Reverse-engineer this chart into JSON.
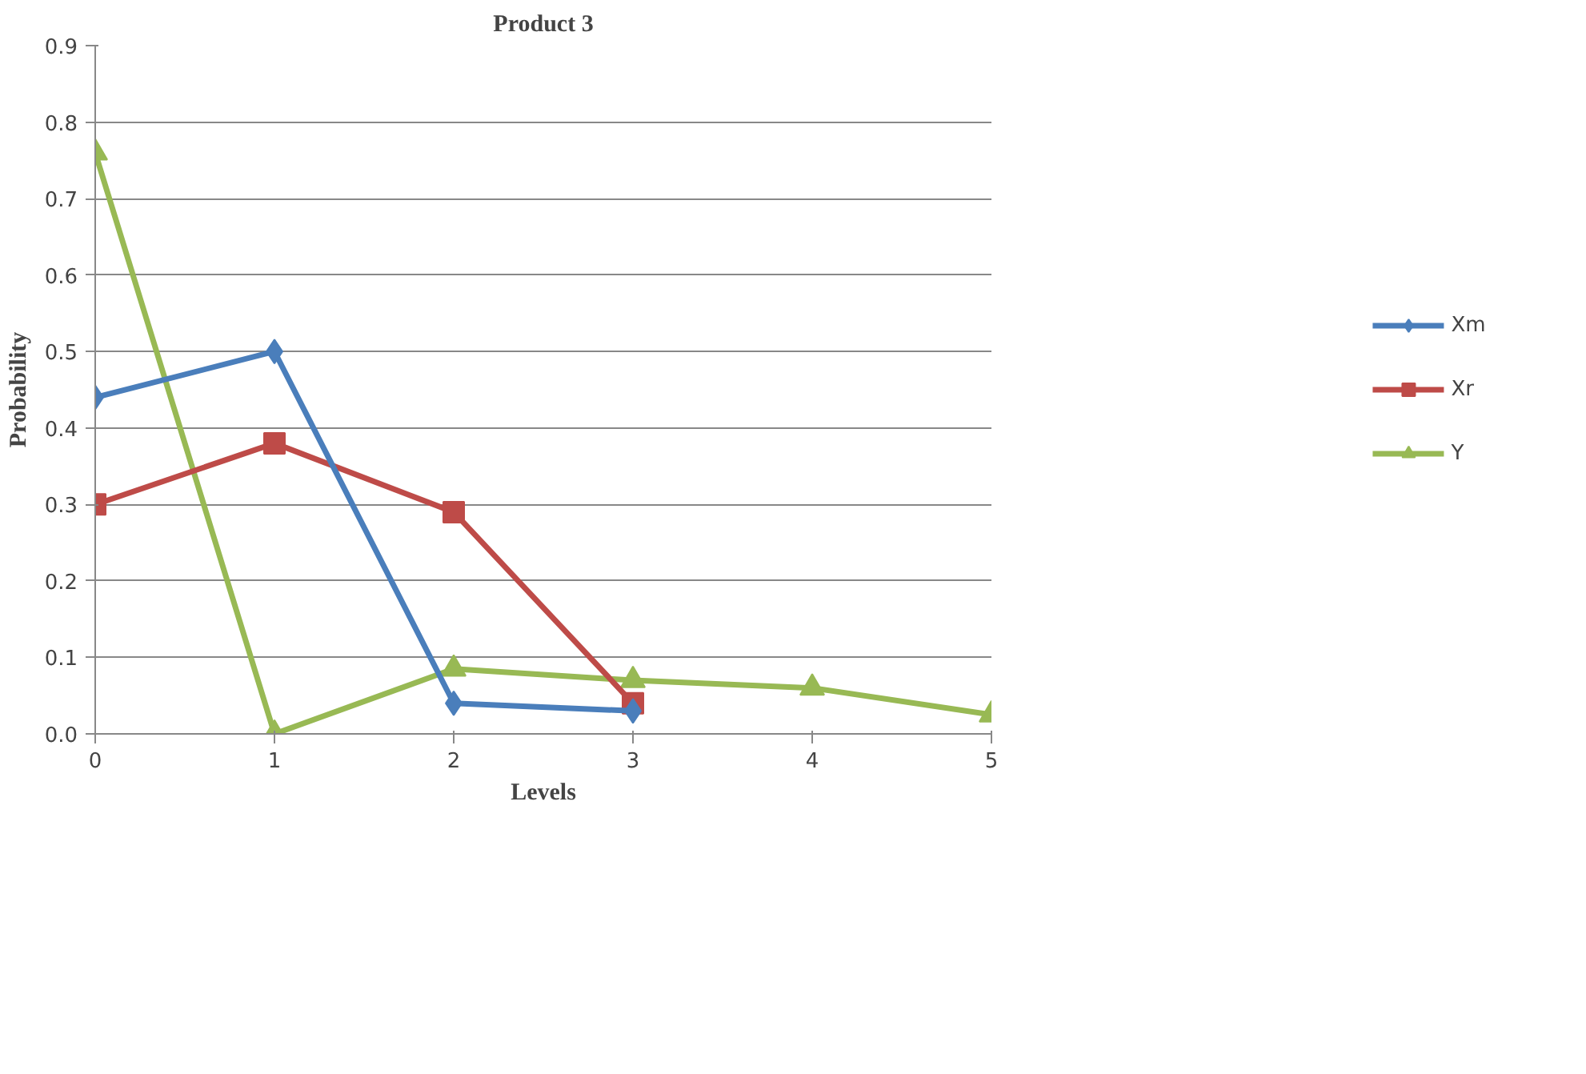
{
  "chart_data": {
    "type": "line",
    "title": "Product 3",
    "xlabel": "Levels",
    "ylabel": "Probability",
    "xlim": [
      0,
      5
    ],
    "xticks": [
      0,
      1,
      2,
      3,
      4,
      5
    ],
    "ylim": [
      0,
      0.9
    ],
    "yticks": [
      {
        "value": 0,
        "label": "0.0"
      },
      0.1,
      0.2,
      0.3,
      0.4,
      0.5,
      0.6,
      0.7,
      0.8,
      0.9
    ],
    "grid": "y",
    "legend": "right",
    "line_style": "solid",
    "series": [
      {
        "name": "Xm",
        "color": "#4a7ebb",
        "marker": "diamond",
        "x": [
          0,
          1,
          2,
          3
        ],
        "values": [
          0.44,
          0.5,
          0.04,
          0.03
        ]
      },
      {
        "name": "Xr",
        "color": "#be4b48",
        "marker": "square",
        "x": [
          0,
          1,
          2,
          3
        ],
        "values": [
          0.3,
          0.38,
          0.29,
          0.04
        ]
      },
      {
        "name": "Y",
        "color": "#98b954",
        "marker": "triangle",
        "x": [
          0,
          1,
          2,
          3,
          4,
          5
        ],
        "values": [
          0.76,
          0.0,
          0.085,
          0.07,
          0.06,
          0.025
        ]
      }
    ]
  }
}
